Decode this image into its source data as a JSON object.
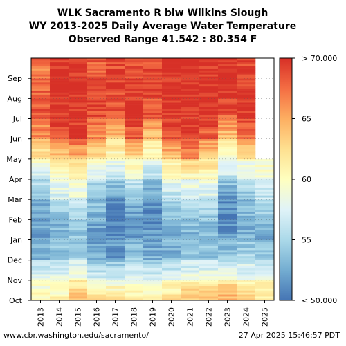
{
  "title_lines": [
    "WLK Sacramento R blw Wilkins Slough",
    "WY 2013-2025 Daily Average Water Temperature",
    "Observed Range 41.542 : 80.354 F"
  ],
  "footer": {
    "source": "www.cbr.washington.edu/sacramento/",
    "timestamp": "27 Apr 2025 15:46:57 PDT"
  },
  "chart_data": {
    "type": "heatmap",
    "x_categories": [
      "2013",
      "2014",
      "2015",
      "2016",
      "2017",
      "2018",
      "2019",
      "2020",
      "2021",
      "2022",
      "2023",
      "2024",
      "2025"
    ],
    "y_ticks": [
      "Oct",
      "Nov",
      "Dec",
      "Jan",
      "Feb",
      "Mar",
      "Apr",
      "May",
      "Jun",
      "Jul",
      "Aug",
      "Sep"
    ],
    "z_unit": "F",
    "colorbar": {
      "range": [
        50,
        70
      ],
      "tick_values": [
        50,
        55,
        60,
        65,
        70
      ],
      "tick_labels": [
        "< 50.000",
        "55",
        "60",
        "65",
        "> 70.000"
      ],
      "colors": [
        "#4575b4",
        "#74add1",
        "#abd9e9",
        "#e0f3f8",
        "#ffffbf",
        "#fee090",
        "#fdae61",
        "#f46d43",
        "#d73027"
      ]
    },
    "monthly_mean_temperature_estimate": {
      "2013": [
        60,
        58,
        53,
        52,
        52,
        54,
        57,
        62,
        66,
        68,
        68,
        67
      ],
      "2014": [
        61,
        58,
        54,
        53,
        54,
        57,
        59,
        64,
        68,
        70,
        70,
        70
      ],
      "2015": [
        64,
        59,
        55,
        54,
        55,
        58,
        60,
        65,
        69,
        70,
        70,
        70
      ],
      "2016": [
        63,
        57,
        53,
        52,
        53,
        54,
        57,
        62,
        66,
        69,
        69,
        68
      ],
      "2017": [
        62,
        57,
        52,
        51,
        50,
        52,
        56,
        60,
        64,
        68,
        69,
        69
      ],
      "2018": [
        61,
        57,
        54,
        52,
        52,
        54,
        58,
        63,
        68,
        70,
        70,
        69
      ],
      "2019": [
        61,
        57,
        53,
        52,
        51,
        52,
        56,
        60,
        64,
        68,
        69,
        69
      ],
      "2020": [
        62,
        58,
        53,
        53,
        54,
        56,
        59,
        64,
        68,
        70,
        70,
        70
      ],
      "2021": [
        64,
        59,
        54,
        53,
        54,
        57,
        60,
        66,
        70,
        70,
        70,
        70
      ],
      "2022": [
        64,
        59,
        54,
        53,
        54,
        57,
        60,
        64,
        68,
        70,
        70,
        70
      ],
      "2023": [
        65,
        59,
        54,
        52,
        51,
        52,
        56,
        60,
        64,
        68,
        70,
        70
      ],
      "2024": [
        64,
        58,
        55,
        53,
        53,
        54,
        57,
        62,
        67,
        70,
        70,
        69
      ],
      "2025": [
        62,
        58,
        54,
        53,
        54,
        56,
        59,
        null,
        null,
        null,
        null,
        null
      ]
    },
    "notes_visible": "2025 data ends in late April"
  }
}
